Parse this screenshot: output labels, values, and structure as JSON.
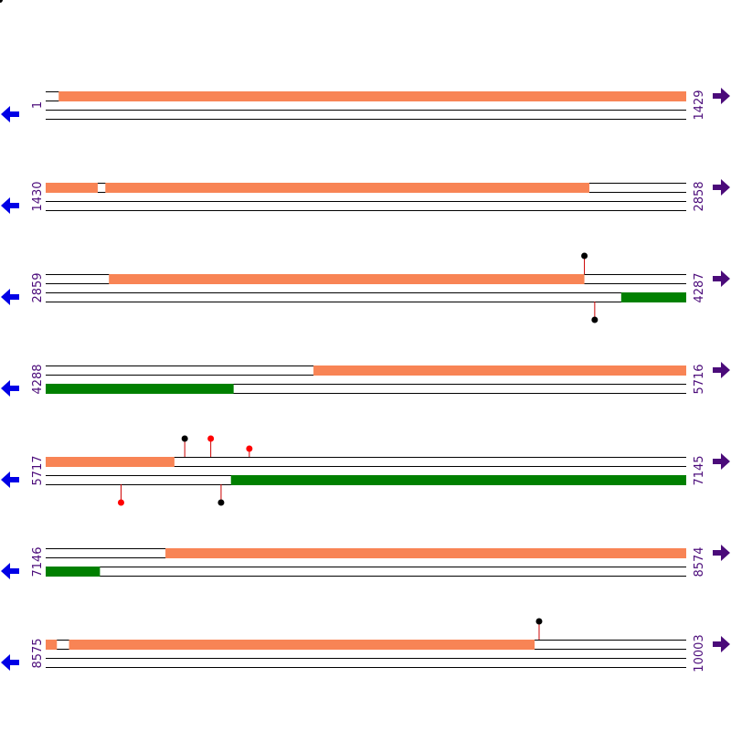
{
  "colors": {
    "forward_feature": "#f88455",
    "reverse_feature": "#008000",
    "track_line": "#000000",
    "start_arrow": "#0000e6",
    "end_arrow": "#4b0b7a",
    "label": "#4b0b7a",
    "stem": "#cc0000",
    "marker_black": "#000000",
    "marker_red": "#ff0000"
  },
  "icons": {
    "row_start": "arrow-left-icon",
    "row_end": "arrow-right-icon"
  },
  "rows": [
    {
      "start": "1",
      "end": "1429",
      "from": 1,
      "to": 1429,
      "forward": [
        [
          30,
          1429
        ]
      ],
      "reverse": [],
      "markers": []
    },
    {
      "start": "1430",
      "end": "2858",
      "from": 1430,
      "to": 2858,
      "forward": [
        [
          1430,
          1546
        ],
        [
          1563,
          2642
        ]
      ],
      "reverse": [],
      "markers": []
    },
    {
      "start": "2859",
      "end": "4287",
      "from": 2859,
      "to": 4287,
      "forward": [
        [
          3000,
          4060
        ]
      ],
      "reverse": [
        [
          4142,
          4287
        ]
      ],
      "markers": [
        {
          "pos": 4060,
          "side": "up",
          "color": "black",
          "len": "long"
        },
        {
          "pos": 4083,
          "side": "down",
          "color": "black",
          "len": "long"
        }
      ]
    },
    {
      "start": "4288",
      "end": "5716",
      "from": 4288,
      "to": 5716,
      "forward": [
        [
          4885,
          5716
        ]
      ],
      "reverse": [
        [
          4288,
          4707
        ]
      ],
      "markers": []
    },
    {
      "start": "5717",
      "end": "7145",
      "from": 5717,
      "to": 7145,
      "forward": [
        [
          5717,
          6004
        ]
      ],
      "reverse": [
        [
          6130,
          7145
        ]
      ],
      "markers": [
        {
          "pos": 6027,
          "side": "up",
          "color": "black",
          "len": "long"
        },
        {
          "pos": 6085,
          "side": "up",
          "color": "red",
          "len": "long"
        },
        {
          "pos": 6171,
          "side": "up",
          "color": "red",
          "len": "short"
        },
        {
          "pos": 5885,
          "side": "down",
          "color": "red",
          "len": "long"
        },
        {
          "pos": 6108,
          "side": "down",
          "color": "black",
          "len": "long"
        }
      ]
    },
    {
      "start": "7146",
      "end": "8574",
      "from": 7146,
      "to": 8574,
      "forward": [
        [
          7413,
          8574
        ]
      ],
      "reverse": [
        [
          7146,
          7267
        ]
      ],
      "markers": []
    },
    {
      "start": "8575",
      "end": "10003",
      "from": 8575,
      "to": 10003,
      "forward": [
        [
          8575,
          8600
        ],
        [
          8627,
          9665
        ]
      ],
      "reverse": [],
      "markers": [
        {
          "pos": 9675,
          "side": "up",
          "color": "black",
          "len": "long"
        }
      ]
    }
  ]
}
